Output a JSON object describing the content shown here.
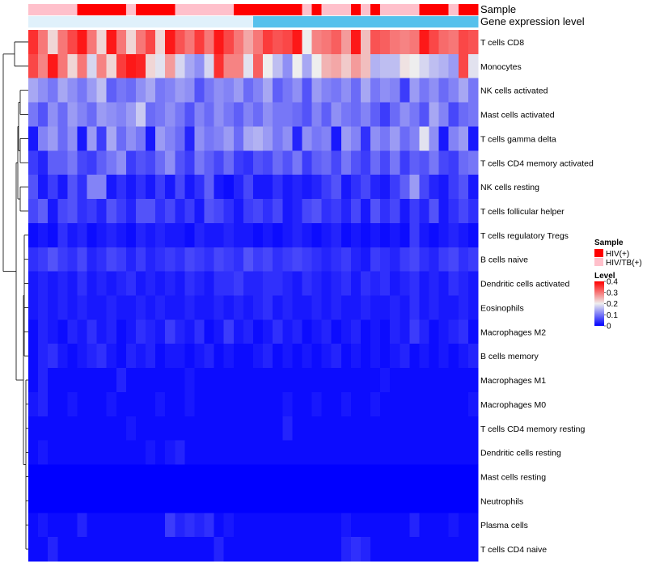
{
  "chart_data": {
    "type": "heatmap",
    "annotations": [
      {
        "name": "Sample",
        "values": [
          "HIV/TB(+)",
          "HIV/TB(+)",
          "HIV/TB(+)",
          "HIV/TB(+)",
          "HIV/TB(+)",
          "HIV(+)",
          "HIV(+)",
          "HIV(+)",
          "HIV(+)",
          "HIV(+)",
          "HIV/TB(+)",
          "HIV(+)",
          "HIV(+)",
          "HIV(+)",
          "HIV(+)",
          "HIV/TB(+)",
          "HIV/TB(+)",
          "HIV/TB(+)",
          "HIV/TB(+)",
          "HIV/TB(+)",
          "HIV/TB(+)",
          "HIV(+)",
          "HIV(+)",
          "HIV(+)",
          "HIV(+)",
          "HIV(+)",
          "HIV(+)",
          "HIV(+)",
          "HIV/TB(+)",
          "HIV(+)",
          "HIV/TB(+)",
          "HIV/TB(+)",
          "HIV/TB(+)",
          "HIV(+)",
          "HIV/TB(+)",
          "HIV(+)",
          "HIV/TB(+)",
          "HIV/TB(+)",
          "HIV/TB(+)",
          "HIV/TB(+)",
          "HIV(+)",
          "HIV(+)",
          "HIV(+)",
          "HIV/TB(+)",
          "HIV(+)",
          "HIV(+)"
        ]
      },
      {
        "name": "Gene expression level",
        "values": [
          "low",
          "low",
          "low",
          "low",
          "low",
          "low",
          "low",
          "low",
          "low",
          "low",
          "low",
          "low",
          "low",
          "low",
          "low",
          "low",
          "low",
          "low",
          "low",
          "low",
          "low",
          "low",
          "low",
          "high",
          "high",
          "high",
          "high",
          "high",
          "high",
          "high",
          "high",
          "high",
          "high",
          "high",
          "high",
          "high",
          "high",
          "high",
          "high",
          "high",
          "high",
          "high",
          "high",
          "high",
          "high",
          "high"
        ]
      }
    ],
    "rows": [
      "T cells CD8",
      "Monocytes",
      "NK cells activated",
      "Mast cells activated",
      "T cells gamma delta",
      "T cells CD4 memory activated",
      "NK cells resting",
      "T cells follicular helper",
      "T cells regulatory  Tregs",
      "B cells naive",
      "Dendritic cells activated",
      "Eosinophils",
      "Macrophages M2",
      "B cells memory",
      "Macrophages M1",
      "Macrophages M0",
      "T cells CD4 memory resting",
      "Dendritic cells resting",
      "Mast cells resting",
      "Neutrophils",
      "Plasma cells",
      "T cells CD4 naive"
    ],
    "legends": {
      "sample": {
        "title": "Sample",
        "labels": [
          "HIV(+)",
          "HIV/TB(+)"
        ],
        "colors": [
          "#ff0000",
          "#ffc0cb"
        ]
      },
      "level": {
        "title": "Level",
        "ticks": [
          "0.4",
          "0.3",
          "0.2",
          "0.1",
          "0"
        ],
        "range": [
          0,
          0.4
        ],
        "colors": [
          "#0000ff",
          "#eeeeee",
          "#ff0000"
        ]
      },
      "expression": {
        "low": "#e0f1fb",
        "high": "#56c1ec"
      }
    },
    "values": [
      [
        0.36,
        0.3,
        0.22,
        0.3,
        0.34,
        0.38,
        0.3,
        0.22,
        0.38,
        0.3,
        0.22,
        0.3,
        0.34,
        0.22,
        0.38,
        0.33,
        0.3,
        0.35,
        0.3,
        0.38,
        0.34,
        0.3,
        0.26,
        0.3,
        0.35,
        0.33,
        0.34,
        0.38,
        0.2,
        0.29,
        0.3,
        0.32,
        0.27,
        0.38,
        0.24,
        0.33,
        0.32,
        0.3,
        0.29,
        0.3,
        0.38,
        0.34,
        0.31,
        0.3,
        0.34,
        0.33
      ],
      [
        0.34,
        0.29,
        0.38,
        0.3,
        0.22,
        0.3,
        0.18,
        0.29,
        0.22,
        0.35,
        0.38,
        0.37,
        0.22,
        0.19,
        0.27,
        0.18,
        0.14,
        0.12,
        0.18,
        0.36,
        0.29,
        0.29,
        0.19,
        0.32,
        0.2,
        0.16,
        0.12,
        0.2,
        0.14,
        0.2,
        0.25,
        0.26,
        0.23,
        0.27,
        0.24,
        0.15,
        0.16,
        0.16,
        0.21,
        0.2,
        0.18,
        0.16,
        0.15,
        0.13,
        0.34,
        0.19
      ],
      [
        0.14,
        0.12,
        0.1,
        0.14,
        0.12,
        0.1,
        0.13,
        0.16,
        0.08,
        0.1,
        0.09,
        0.12,
        0.14,
        0.1,
        0.11,
        0.13,
        0.12,
        0.07,
        0.1,
        0.12,
        0.11,
        0.13,
        0.09,
        0.11,
        0.14,
        0.08,
        0.1,
        0.12,
        0.07,
        0.13,
        0.11,
        0.1,
        0.12,
        0.09,
        0.14,
        0.1,
        0.12,
        0.11,
        0.05,
        0.13,
        0.1,
        0.12,
        0.09,
        0.11,
        0.14,
        0.1
      ],
      [
        0.1,
        0.07,
        0.12,
        0.09,
        0.13,
        0.11,
        0.09,
        0.13,
        0.12,
        0.11,
        0.13,
        0.17,
        0.09,
        0.1,
        0.12,
        0.1,
        0.07,
        0.11,
        0.09,
        0.12,
        0.1,
        0.08,
        0.11,
        0.09,
        0.12,
        0.1,
        0.1,
        0.09,
        0.07,
        0.11,
        0.08,
        0.12,
        0.1,
        0.09,
        0.11,
        0.08,
        0.05,
        0.09,
        0.12,
        0.1,
        0.07,
        0.14,
        0.11,
        0.06,
        0.09,
        0.1
      ],
      [
        0.02,
        0.11,
        0.13,
        0.09,
        0.12,
        0.02,
        0.13,
        0.05,
        0.14,
        0.09,
        0.12,
        0.1,
        0.02,
        0.13,
        0.11,
        0.09,
        0.03,
        0.12,
        0.1,
        0.11,
        0.13,
        0.09,
        0.14,
        0.15,
        0.13,
        0.1,
        0.12,
        0.03,
        0.12,
        0.1,
        0.11,
        0.02,
        0.13,
        0.11,
        0.04,
        0.12,
        0.1,
        0.13,
        0.09,
        0.11,
        0.19,
        0.12,
        0.02,
        0.11,
        0.13,
        0.02
      ],
      [
        0.05,
        0.03,
        0.08,
        0.08,
        0.1,
        0.06,
        0.05,
        0.08,
        0.1,
        0.12,
        0.05,
        0.07,
        0.06,
        0.09,
        0.12,
        0.07,
        0.05,
        0.1,
        0.08,
        0.06,
        0.09,
        0.05,
        0.04,
        0.07,
        0.06,
        0.09,
        0.07,
        0.1,
        0.05,
        0.08,
        0.09,
        0.06,
        0.1,
        0.07,
        0.05,
        0.09,
        0.06,
        0.1,
        0.05,
        0.08,
        0.07,
        0.1,
        0.06,
        0.05,
        0.09,
        0.1
      ],
      [
        0.07,
        0.02,
        0.05,
        0.02,
        0.07,
        0.04,
        0.11,
        0.11,
        0.02,
        0.04,
        0.02,
        0.04,
        0.02,
        0.05,
        0.02,
        0.06,
        0.02,
        0.04,
        0.08,
        0.02,
        0.01,
        0.03,
        0.06,
        0.02,
        0.02,
        0.04,
        0.02,
        0.03,
        0.02,
        0.03,
        0.05,
        0.07,
        0.02,
        0.04,
        0.06,
        0.03,
        0.02,
        0.05,
        0.08,
        0.13,
        0.06,
        0.03,
        0.02,
        0.05,
        0.07,
        0.02
      ],
      [
        0.06,
        0.08,
        0.02,
        0.06,
        0.07,
        0.04,
        0.05,
        0.03,
        0.07,
        0.05,
        0.03,
        0.07,
        0.07,
        0.04,
        0.06,
        0.03,
        0.05,
        0.02,
        0.07,
        0.06,
        0.04,
        0.02,
        0.05,
        0.06,
        0.04,
        0.06,
        0.02,
        0.03,
        0.06,
        0.07,
        0.04,
        0.05,
        0.03,
        0.06,
        0.02,
        0.07,
        0.04,
        0.06,
        0.02,
        0.05,
        0.03,
        0.07,
        0.02,
        0.04,
        0.06,
        0.04
      ],
      [
        0.01,
        0.02,
        0.01,
        0.04,
        0.02,
        0.03,
        0.01,
        0.02,
        0.03,
        0.02,
        0.01,
        0.03,
        0.02,
        0.03,
        0.02,
        0.02,
        0.01,
        0.03,
        0.02,
        0.02,
        0.03,
        0.02,
        0.02,
        0.01,
        0.02,
        0.01,
        0.02,
        0.03,
        0.02,
        0.01,
        0.02,
        0.03,
        0.01,
        0.02,
        0.01,
        0.02,
        0.01,
        0.02,
        0.01,
        0.05,
        0.02,
        0.01,
        0.02,
        0.03,
        0.02,
        0.01
      ],
      [
        0.04,
        0.05,
        0.07,
        0.05,
        0.04,
        0.06,
        0.03,
        0.04,
        0.06,
        0.05,
        0.03,
        0.05,
        0.03,
        0.04,
        0.05,
        0.04,
        0.06,
        0.05,
        0.04,
        0.06,
        0.05,
        0.04,
        0.07,
        0.05,
        0.06,
        0.04,
        0.05,
        0.06,
        0.05,
        0.04,
        0.03,
        0.04,
        0.05,
        0.03,
        0.02,
        0.05,
        0.04,
        0.03,
        0.05,
        0.06,
        0.04,
        0.03,
        0.05,
        0.06,
        0.04,
        0.05
      ],
      [
        0.02,
        0.03,
        0.02,
        0.03,
        0.02,
        0.04,
        0.02,
        0.03,
        0.02,
        0.03,
        0.04,
        0.02,
        0.03,
        0.02,
        0.03,
        0.02,
        0.04,
        0.03,
        0.02,
        0.04,
        0.04,
        0.05,
        0.03,
        0.03,
        0.04,
        0.04,
        0.03,
        0.02,
        0.04,
        0.03,
        0.02,
        0.03,
        0.04,
        0.02,
        0.04,
        0.03,
        0.04,
        0.02,
        0.03,
        0.04,
        0.02,
        0.03,
        0.02,
        0.04,
        0.03,
        0.02
      ],
      [
        0.02,
        0.03,
        0.02,
        0.03,
        0.02,
        0.03,
        0.02,
        0.02,
        0.03,
        0.02,
        0.02,
        0.03,
        0.02,
        0.03,
        0.02,
        0.02,
        0.03,
        0.02,
        0.02,
        0.03,
        0.02,
        0.03,
        0.02,
        0.03,
        0.04,
        0.02,
        0.03,
        0.02,
        0.02,
        0.03,
        0.02,
        0.03,
        0.02,
        0.02,
        0.03,
        0.02,
        0.02,
        0.03,
        0.02,
        0.04,
        0.02,
        0.03,
        0.02,
        0.02,
        0.03,
        0.02
      ],
      [
        0.01,
        0.03,
        0.02,
        0.01,
        0.03,
        0.02,
        0.04,
        0.02,
        0.03,
        0.01,
        0.02,
        0.04,
        0.03,
        0.02,
        0.05,
        0.03,
        0.02,
        0.04,
        0.01,
        0.02,
        0.05,
        0.02,
        0.03,
        0.01,
        0.02,
        0.04,
        0.02,
        0.03,
        0.01,
        0.02,
        0.03,
        0.01,
        0.02,
        0.03,
        0.01,
        0.02,
        0.01,
        0.03,
        0.02,
        0.05,
        0.03,
        0.01,
        0.02,
        0.03,
        0.04,
        0.01
      ],
      [
        0.01,
        0.03,
        0.04,
        0.02,
        0.01,
        0.02,
        0.03,
        0.04,
        0.02,
        0.01,
        0.03,
        0.02,
        0.03,
        0.01,
        0.02,
        0.02,
        0.01,
        0.02,
        0.03,
        0.01,
        0.02,
        0.01,
        0.01,
        0.02,
        0.03,
        0.01,
        0.02,
        0.01,
        0.02,
        0.01,
        0.02,
        0.03,
        0.01,
        0.02,
        0.01,
        0.02,
        0.01,
        0.02,
        0.03,
        0.01,
        0.02,
        0.01,
        0.02,
        0.01,
        0.02,
        0.03
      ],
      [
        0.01,
        0.03,
        0.01,
        0.01,
        0.01,
        0.01,
        0.01,
        0.01,
        0.01,
        0.03,
        0.01,
        0.01,
        0.01,
        0.01,
        0.01,
        0.01,
        0.02,
        0.01,
        0.01,
        0.01,
        0.01,
        0.01,
        0.01,
        0.01,
        0.01,
        0.01,
        0.01,
        0.01,
        0.01,
        0.01,
        0.01,
        0.01,
        0.01,
        0.01,
        0.01,
        0.01,
        0.02,
        0.01,
        0.01,
        0.01,
        0.01,
        0.01,
        0.01,
        0.01,
        0.01,
        0.01
      ],
      [
        0.02,
        0.03,
        0.01,
        0.01,
        0.02,
        0.01,
        0.01,
        0.01,
        0.02,
        0.01,
        0.01,
        0.01,
        0.01,
        0.02,
        0.01,
        0.01,
        0.02,
        0.01,
        0.01,
        0.01,
        0.01,
        0.01,
        0.01,
        0.01,
        0.01,
        0.01,
        0.02,
        0.01,
        0.01,
        0.02,
        0.01,
        0.01,
        0.02,
        0.01,
        0.01,
        0.02,
        0.01,
        0.01,
        0.01,
        0.01,
        0.01,
        0.01,
        0.01,
        0.01,
        0.01,
        0.02
      ],
      [
        0.01,
        0.01,
        0.01,
        0.01,
        0.01,
        0.01,
        0.01,
        0.01,
        0.01,
        0.01,
        0.02,
        0.01,
        0.01,
        0.01,
        0.01,
        0.01,
        0.01,
        0.01,
        0.01,
        0.01,
        0.01,
        0.01,
        0.01,
        0.01,
        0.01,
        0.01,
        0.03,
        0.01,
        0.01,
        0.01,
        0.01,
        0.01,
        0.01,
        0.01,
        0.01,
        0.01,
        0.01,
        0.01,
        0.01,
        0.01,
        0.01,
        0.01,
        0.01,
        0.01,
        0.01,
        0.01
      ],
      [
        0.01,
        0.02,
        0.01,
        0.01,
        0.01,
        0.01,
        0.01,
        0.01,
        0.01,
        0.01,
        0.01,
        0.01,
        0.02,
        0.01,
        0.02,
        0.03,
        0.01,
        0.01,
        0.01,
        0.01,
        0.01,
        0.01,
        0.01,
        0.01,
        0.01,
        0.01,
        0.01,
        0.01,
        0.01,
        0.01,
        0.01,
        0.01,
        0.01,
        0.01,
        0.01,
        0.01,
        0.01,
        0.01,
        0.01,
        0.01,
        0.01,
        0.01,
        0.01,
        0.01,
        0.01,
        0.01
      ],
      [
        0.0,
        0.0,
        0.0,
        0.0,
        0.0,
        0.0,
        0.0,
        0.0,
        0.0,
        0.0,
        0.0,
        0.0,
        0.0,
        0.0,
        0.0,
        0.0,
        0.0,
        0.0,
        0.0,
        0.0,
        0.0,
        0.0,
        0.0,
        0.0,
        0.0,
        0.0,
        0.0,
        0.0,
        0.0,
        0.0,
        0.0,
        0.0,
        0.0,
        0.0,
        0.0,
        0.0,
        0.0,
        0.0,
        0.0,
        0.0,
        0.0,
        0.0,
        0.0,
        0.0,
        0.0,
        0.0
      ],
      [
        0.0,
        0.0,
        0.0,
        0.0,
        0.0,
        0.0,
        0.0,
        0.0,
        0.0,
        0.0,
        0.0,
        0.0,
        0.0,
        0.0,
        0.0,
        0.0,
        0.0,
        0.0,
        0.0,
        0.0,
        0.0,
        0.0,
        0.0,
        0.0,
        0.0,
        0.0,
        0.0,
        0.0,
        0.0,
        0.0,
        0.0,
        0.0,
        0.0,
        0.0,
        0.0,
        0.0,
        0.0,
        0.0,
        0.0,
        0.0,
        0.0,
        0.0,
        0.0,
        0.0,
        0.0,
        0.0
      ],
      [
        0.01,
        0.02,
        0.01,
        0.01,
        0.01,
        0.03,
        0.01,
        0.01,
        0.01,
        0.01,
        0.01,
        0.01,
        0.01,
        0.01,
        0.05,
        0.03,
        0.04,
        0.03,
        0.04,
        0.01,
        0.02,
        0.01,
        0.01,
        0.01,
        0.01,
        0.01,
        0.01,
        0.01,
        0.01,
        0.01,
        0.01,
        0.01,
        0.02,
        0.01,
        0.01,
        0.01,
        0.01,
        0.01,
        0.01,
        0.03,
        0.01,
        0.01,
        0.01,
        0.02,
        0.01,
        0.01
      ],
      [
        0.01,
        0.01,
        0.03,
        0.01,
        0.01,
        0.01,
        0.01,
        0.01,
        0.01,
        0.01,
        0.01,
        0.01,
        0.01,
        0.01,
        0.01,
        0.01,
        0.01,
        0.01,
        0.01,
        0.03,
        0.01,
        0.01,
        0.01,
        0.01,
        0.01,
        0.01,
        0.01,
        0.01,
        0.01,
        0.01,
        0.01,
        0.01,
        0.03,
        0.04,
        0.03,
        0.01,
        0.01,
        0.01,
        0.01,
        0.01,
        0.01,
        0.01,
        0.01,
        0.01,
        0.01,
        0.01
      ]
    ]
  }
}
